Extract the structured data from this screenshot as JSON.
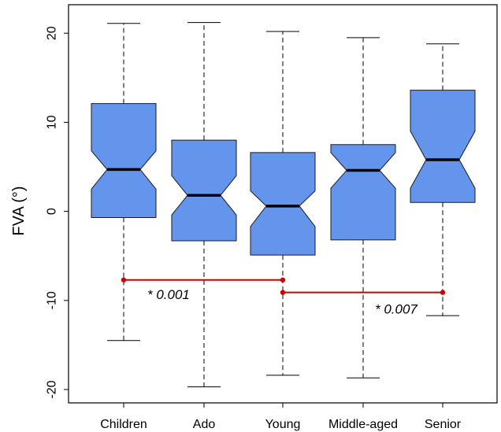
{
  "chart_data": {
    "type": "box",
    "ylabel": "FVA (°)",
    "xlabel": "",
    "ylim": [
      -21.5,
      23.2
    ],
    "yticks": [
      "-20",
      "-10",
      "0",
      "10",
      "20"
    ],
    "categories": [
      "Children",
      "Ado",
      "Young",
      "Middle-aged",
      "Senior"
    ],
    "boxes": [
      {
        "name": "Children",
        "whisker_low": -14.5,
        "q1": -0.7,
        "median": 4.7,
        "q3": 12.1,
        "whisker_high": 21.1,
        "notch_low": 2.5,
        "notch_high": 6.8
      },
      {
        "name": "Ado",
        "whisker_low": -19.7,
        "q1": -3.3,
        "median": 1.8,
        "q3": 8.0,
        "whisker_high": 21.2,
        "notch_low": -0.4,
        "notch_high": 4.0
      },
      {
        "name": "Young",
        "whisker_low": -18.4,
        "q1": -4.9,
        "median": 0.6,
        "q3": 6.6,
        "whisker_high": 20.2,
        "notch_low": -1.7,
        "notch_high": 2.3
      },
      {
        "name": "Middle-aged",
        "whisker_low": -18.7,
        "q1": -3.2,
        "median": 4.6,
        "q3": 7.5,
        "whisker_high": 19.5,
        "notch_low": 2.6,
        "notch_high": 6.6
      },
      {
        "name": "Senior",
        "whisker_low": -11.7,
        "q1": 1.0,
        "median": 5.8,
        "q3": 13.6,
        "whisker_high": 18.8,
        "notch_low": 2.6,
        "notch_high": 9.0
      }
    ],
    "comparisons": [
      {
        "from": "Children",
        "to": "Young",
        "y": -7.7,
        "label": "* 0.001"
      },
      {
        "from": "Young",
        "to": "Senior",
        "y": -9.1,
        "label": "* 0.007"
      }
    ],
    "colors": {
      "box_fill": "#6495ED",
      "box_stroke": "#1a1a1a",
      "comparison": "#CC0000"
    }
  }
}
